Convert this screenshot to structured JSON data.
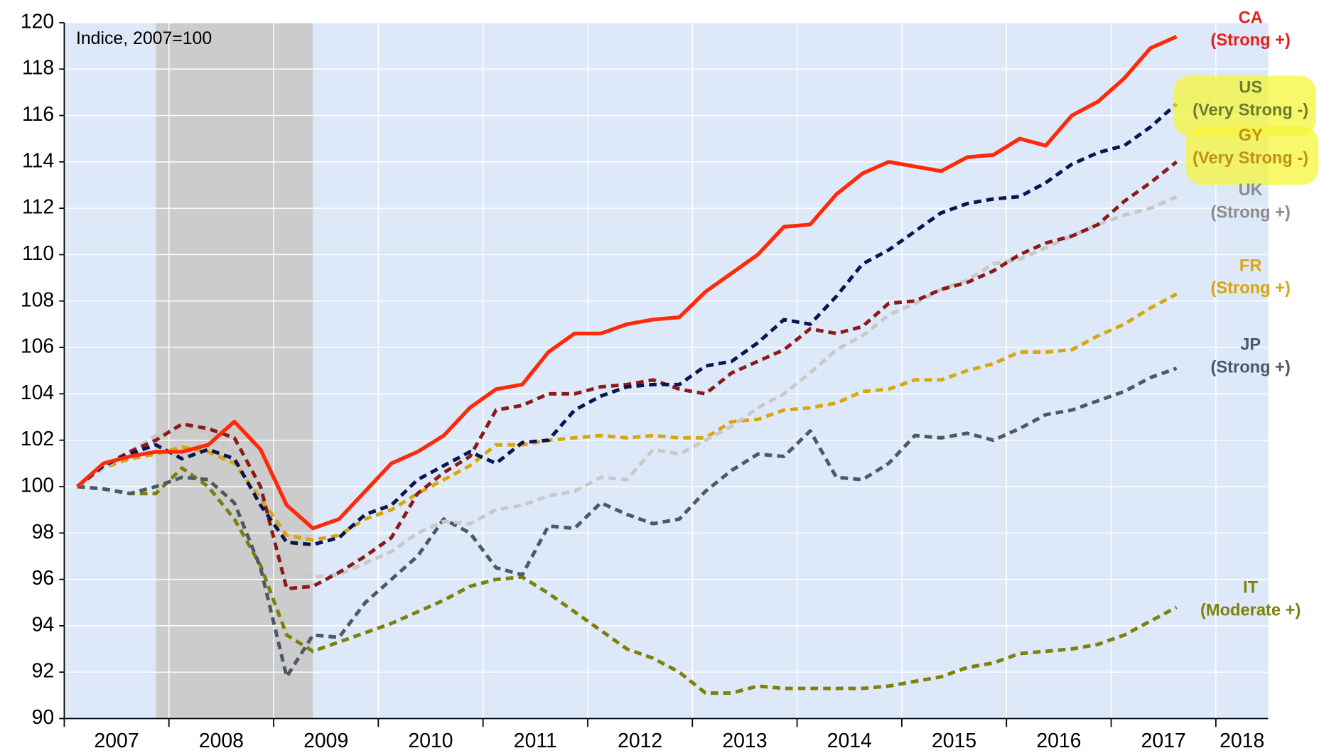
{
  "chart_data": {
    "type": "line",
    "annotation": "Indice, 2007=100",
    "xlim": [
      2007,
      2018.5
    ],
    "xticks": [
      2007,
      2008,
      2009,
      2010,
      2011,
      2012,
      2013,
      2014,
      2015,
      2016,
      2017,
      2018
    ],
    "ylim": [
      90,
      120
    ],
    "yticks": [
      90,
      92,
      94,
      96,
      98,
      100,
      102,
      104,
      106,
      108,
      110,
      112,
      114,
      116,
      118,
      120
    ],
    "grid": true,
    "shading": [
      2007.875,
      2009.375
    ],
    "x": [
      2007.125,
      2007.375,
      2007.625,
      2007.875,
      2008.125,
      2008.375,
      2008.625,
      2008.875,
      2009.125,
      2009.375,
      2009.625,
      2009.875,
      2010.125,
      2010.375,
      2010.625,
      2010.875,
      2011.125,
      2011.375,
      2011.625,
      2011.875,
      2012.125,
      2012.375,
      2012.625,
      2012.875,
      2013.125,
      2013.375,
      2013.625,
      2013.875,
      2014.125,
      2014.375,
      2014.625,
      2014.875,
      2015.125,
      2015.375,
      2015.625,
      2015.875,
      2016.125,
      2016.375,
      2016.625,
      2016.875,
      2017.125,
      2017.375,
      2017.625
    ],
    "series": [
      {
        "name": "CA",
        "note": "(Strong +)",
        "color": "#ff2a0a",
        "label_color": "#e8201c",
        "style": "solid",
        "values": [
          100,
          101,
          101.3,
          101.5,
          101.5,
          101.8,
          102.8,
          101.6,
          99.2,
          98.2,
          98.6,
          99.8,
          101,
          101.5,
          102.2,
          103.4,
          104.2,
          104.4,
          105.8,
          106.6,
          106.6,
          107,
          107.2,
          107.3,
          108.4,
          109.2,
          110,
          111.2,
          111.3,
          112.6,
          113.5,
          114,
          113.8,
          113.6,
          114.2,
          114.3,
          115,
          114.7,
          116,
          116.6,
          117.6,
          118.9,
          119.4
        ]
      },
      {
        "name": "US",
        "note": "(Very Strong -)",
        "color": "#0a1450",
        "label_color": "#6b7d2e",
        "style": "dashed",
        "values": [
          100,
          100.9,
          101.4,
          101.8,
          101.2,
          101.6,
          101.2,
          99.2,
          97.6,
          97.5,
          97.8,
          98.8,
          99.2,
          100.3,
          100.9,
          101.5,
          101.0,
          101.9,
          102.0,
          103.3,
          103.9,
          104.3,
          104.4,
          104.4,
          105.2,
          105.4,
          106.2,
          107.2,
          107.0,
          108.2,
          109.6,
          110.2,
          111.0,
          111.8,
          112.2,
          112.4,
          112.5,
          113.1,
          113.9,
          114.4,
          114.7,
          115.5,
          116.5
        ]
      },
      {
        "name": "GY",
        "note": "(Very Strong -)",
        "color": "#8b1a1a",
        "label_color": "#c0901a",
        "style": "dashed",
        "values": [
          100,
          100.9,
          101.5,
          102.0,
          102.7,
          102.5,
          102.1,
          100,
          95.6,
          95.7,
          96.3,
          97.0,
          97.8,
          99.7,
          100.6,
          101.3,
          103.3,
          103.5,
          104.0,
          104.0,
          104.3,
          104.4,
          104.6,
          104.2,
          104.0,
          104.9,
          105.4,
          105.9,
          106.8,
          106.6,
          106.9,
          107.9,
          108.0,
          108.5,
          108.8,
          109.3,
          110.0,
          110.5,
          110.8,
          111.3,
          112.3,
          113.1,
          114.0
        ]
      },
      {
        "name": "UK",
        "note": "(Strong +)",
        "color": "#c8c8c8",
        "label_color": "#8c8c8c",
        "style": "dashed",
        "values": [
          100,
          100.8,
          101.5,
          102.2,
          102.6,
          102.3,
          101.5,
          99.2,
          96.4,
          96.1,
          96.2,
          96.7,
          97.2,
          98.0,
          98.5,
          98.4,
          99.0,
          99.2,
          99.6,
          99.8,
          100.4,
          100.3,
          101.6,
          101.4,
          102.0,
          102.6,
          103.4,
          104.0,
          104.9,
          105.9,
          106.5,
          107.4,
          107.9,
          108.5,
          108.9,
          109.6,
          109.8,
          110.3,
          110.8,
          111.3,
          111.7,
          112.0,
          112.5
        ]
      },
      {
        "name": "FR",
        "note": "(Strong +)",
        "color": "#d9a60e",
        "label_color": "#d9a60e",
        "style": "dashed",
        "values": [
          100,
          100.8,
          101.2,
          101.4,
          101.7,
          101.5,
          101.0,
          99.5,
          97.9,
          97.7,
          97.9,
          98.6,
          99.0,
          99.7,
          100.3,
          100.9,
          101.8,
          101.8,
          102.0,
          102.1,
          102.2,
          102.1,
          102.2,
          102.1,
          102.1,
          102.8,
          102.9,
          103.3,
          103.4,
          103.6,
          104.1,
          104.2,
          104.6,
          104.6,
          105.0,
          105.3,
          105.8,
          105.8,
          105.9,
          106.5,
          107.0,
          107.7,
          108.3
        ]
      },
      {
        "name": "JP",
        "note": "(Strong +)",
        "color": "#4a5a66",
        "label_color": "#4a5a66",
        "style": "dashed",
        "values": [
          100,
          99.9,
          99.7,
          100.0,
          100.4,
          100.3,
          99.3,
          96.5,
          91.8,
          93.6,
          93.5,
          95.0,
          96.0,
          97.0,
          98.6,
          98.0,
          96.5,
          96.2,
          98.3,
          98.2,
          99.3,
          98.8,
          98.4,
          98.6,
          99.8,
          100.7,
          101.4,
          101.3,
          102.4,
          100.4,
          100.3,
          101.0,
          102.2,
          102.1,
          102.3,
          102.0,
          102.5,
          103.1,
          103.3,
          103.7,
          104.1,
          104.7,
          105.1
        ]
      },
      {
        "name": "IT",
        "note": "(Moderate +)",
        "color": "#7f7f0a",
        "label_color": "#7f7f0a",
        "style": "dashed",
        "values": [
          100,
          99.9,
          99.7,
          99.7,
          100.8,
          100.0,
          98.6,
          96.6,
          93.6,
          92.9,
          93.3,
          93.7,
          94.1,
          94.6,
          95.1,
          95.7,
          96.0,
          96.1,
          95.4,
          94.6,
          93.8,
          93.0,
          92.6,
          92.0,
          91.1,
          91.1,
          91.4,
          91.3,
          91.3,
          91.3,
          91.3,
          91.4,
          91.6,
          91.8,
          92.2,
          92.4,
          92.8,
          92.9,
          93.0,
          93.2,
          93.6,
          94.2,
          94.8
        ]
      }
    ]
  }
}
